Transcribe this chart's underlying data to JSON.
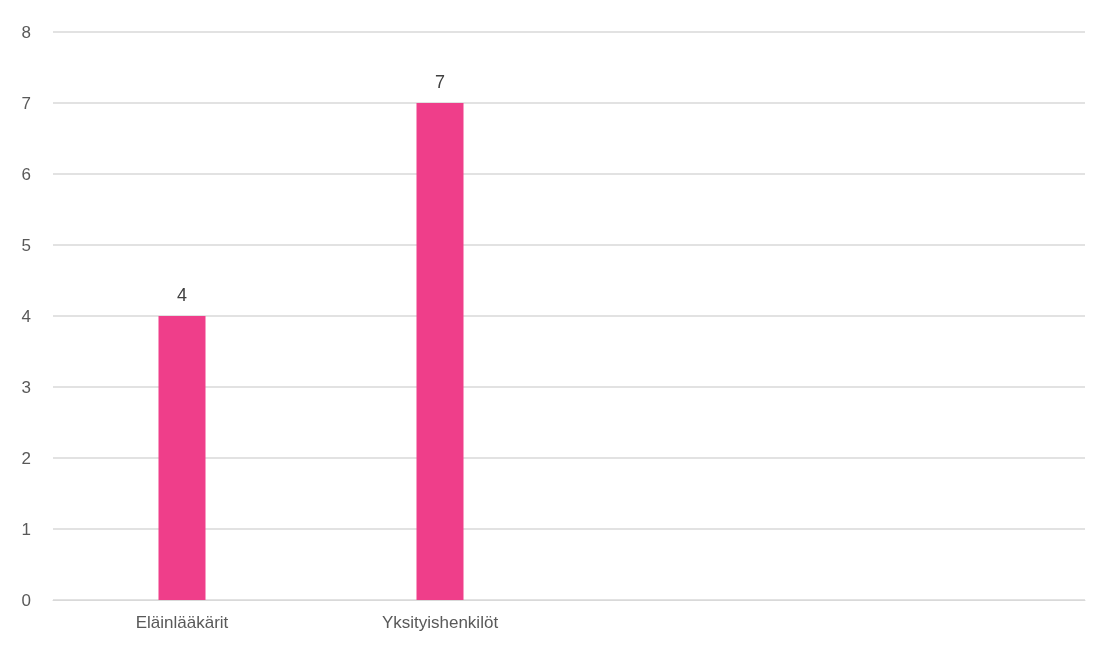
{
  "chart_data": {
    "type": "bar",
    "categories": [
      "Eläinlääkärit",
      "Yksityishenkilöt",
      null,
      null
    ],
    "values": [
      4,
      7,
      null,
      null
    ],
    "color": "#ef3e8a",
    "ylim": [
      0,
      8
    ],
    "yticks": [
      0,
      1,
      2,
      3,
      4,
      5,
      6,
      7,
      8
    ],
    "grid": "y",
    "data_labels": true
  }
}
